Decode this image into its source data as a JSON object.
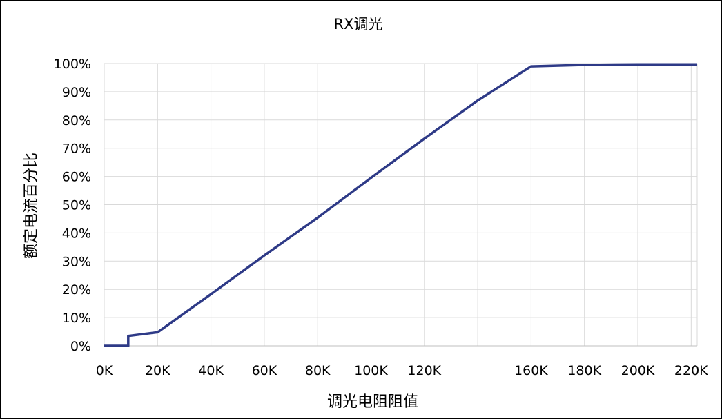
{
  "chart_data": {
    "type": "line",
    "title": "RX调光",
    "xlabel": "调光电阻阻值",
    "ylabel": "额定电流百分比",
    "x_ticks": [
      0,
      20000,
      40000,
      60000,
      80000,
      100000,
      120000,
      140000,
      160000,
      180000,
      200000,
      220000
    ],
    "x_tick_labels": [
      "0K",
      "20K",
      "40K",
      "60K",
      "80K",
      "100K",
      "120K",
      "",
      "160K",
      "180K",
      "200K",
      "220K"
    ],
    "y_ticks": [
      0,
      10,
      20,
      30,
      40,
      50,
      60,
      70,
      80,
      90,
      100
    ],
    "y_tick_labels": [
      "0%",
      "10%",
      "20%",
      "30%",
      "40%",
      "50%",
      "60%",
      "70%",
      "80%",
      "90%",
      "100%"
    ],
    "xlim": [
      0,
      200000
    ],
    "ylim": [
      0,
      100
    ],
    "grid": true,
    "legend": "none",
    "series": [
      {
        "color": "#2e3a87",
        "points": [
          [
            0,
            0
          ],
          [
            9000,
            0
          ],
          [
            9000,
            3.5
          ],
          [
            20000,
            4.8
          ],
          [
            40000,
            18.3
          ],
          [
            60000,
            32
          ],
          [
            80000,
            45.4
          ],
          [
            100000,
            59.5
          ],
          [
            120000,
            73.4
          ],
          [
            140000,
            86.9
          ],
          [
            160000,
            99
          ],
          [
            180000,
            99.5
          ],
          [
            200000,
            99.7
          ]
        ]
      }
    ]
  }
}
